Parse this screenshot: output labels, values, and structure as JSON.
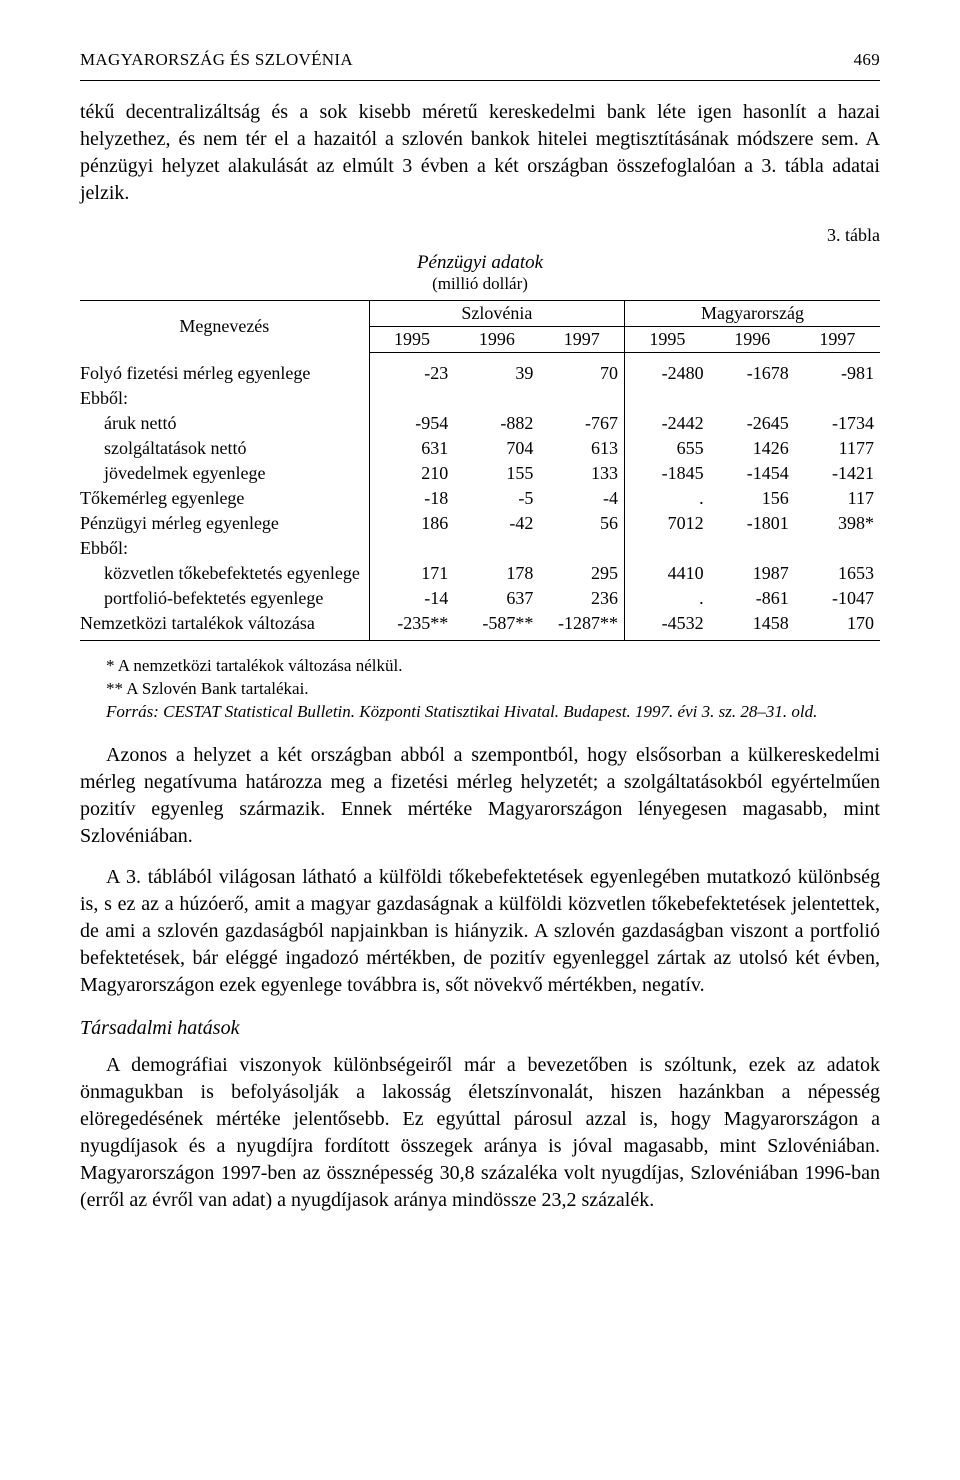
{
  "running_head": {
    "left": "MAGYARORSZÁG ÉS SZLOVÉNIA",
    "page_number": "469"
  },
  "para1": "tékű decentralizáltság és a sok kisebb méretű kereskedelmi bank léte igen hasonlít a hazai helyzethez, és nem tér el a hazaitól a szlovén bankok hitelei megtisztításának módszere sem. A pénzügyi helyzet alakulását az elmúlt 3 évben a két országban összefoglalóan a 3. tábla adatai jelzik.",
  "table": {
    "tag": "3. tábla",
    "title": "Pénzügyi adatok",
    "subtitle": "(millió dollár)",
    "col_label": "Megnevezés",
    "group1": "Szlovénia",
    "group2": "Magyarország",
    "years": [
      "1995",
      "1996",
      "1997",
      "1995",
      "1996",
      "1997"
    ],
    "rows": [
      {
        "label": "Folyó fizetési mérleg egyenlege",
        "indent": 0,
        "vals": [
          "-23",
          "39",
          "70",
          "-2480",
          "-1678",
          "-981"
        ]
      },
      {
        "label": "Ebből:",
        "indent": 0,
        "vals": [
          "",
          "",
          "",
          "",
          "",
          ""
        ]
      },
      {
        "label": "áruk nettó",
        "indent": 1,
        "vals": [
          "-954",
          "-882",
          "-767",
          "-2442",
          "-2645",
          "-1734"
        ]
      },
      {
        "label": "szolgáltatások nettó",
        "indent": 1,
        "vals": [
          "631",
          "704",
          "613",
          "655",
          "1426",
          "1177"
        ]
      },
      {
        "label": "jövedelmek egyenlege",
        "indent": 1,
        "vals": [
          "210",
          "155",
          "133",
          "-1845",
          "-1454",
          "-1421"
        ]
      },
      {
        "label": "Tőkemérleg egyenlege",
        "indent": 0,
        "vals": [
          "-18",
          "-5",
          "-4",
          ".",
          "156",
          "117"
        ]
      },
      {
        "label": "Pénzügyi mérleg egyenlege",
        "indent": 0,
        "vals": [
          "186",
          "-42",
          "56",
          "7012",
          "-1801",
          "398*"
        ]
      },
      {
        "label": "Ebből:",
        "indent": 0,
        "vals": [
          "",
          "",
          "",
          "",
          "",
          ""
        ]
      },
      {
        "label": "közvetlen tőkebefektetés egyenlege",
        "indent": 1,
        "vals": [
          "171",
          "178",
          "295",
          "4410",
          "1987",
          "1653"
        ]
      },
      {
        "label": "portfolió-befektetés egyenlege",
        "indent": 1,
        "vals": [
          "-14",
          "637",
          "236",
          ".",
          "-861",
          "-1047"
        ]
      },
      {
        "label": "Nemzetközi tartalékok változása",
        "indent": 0,
        "vals": [
          "-235**",
          "-587**",
          "-1287**",
          "-4532",
          "1458",
          "170"
        ]
      }
    ]
  },
  "footnotes": {
    "f1": "* A nemzetközi tartalékok változása nélkül.",
    "f2": "** A Szlovén Bank tartalékai.",
    "source": "Forrás: CESTAT Statistical Bulletin. Központi Statisztikai Hivatal. Budapest. 1997. évi 3. sz. 28–31. old."
  },
  "para2": "Azonos a helyzet a két országban abból a szempontból, hogy elsősorban a külkereskedelmi mérleg negatívuma határozza meg a fizetési mérleg helyzetét; a szolgáltatásokból egyértelműen pozitív egyenleg származik. Ennek mértéke Magyarországon lényegesen magasabb, mint Szlovéniában.",
  "para3": "A 3. táblából világosan látható a külföldi tőkebefektetések egyenlegében mutatkozó különbség is, s ez az a húzóerő, amit a magyar gazdaságnak a külföldi közvetlen tőkebefektetések jelentettek, de ami a szlovén gazdaságból napjainkban is hiányzik. A szlovén gazdaságban viszont a portfolió befektetések, bár eléggé ingadozó mértékben, de pozitív egyenleggel zártak az utolsó két évben, Magyarországon ezek egyenlege továbbra is, sőt növekvő mértékben, negatív.",
  "section_head": "Társadalmi hatások",
  "para4": "A demográfiai viszonyok különbségeiről már a bevezetőben is szóltunk, ezek az adatok önmagukban is befolyásolják a lakosság életszínvonalát, hiszen hazánkban a népesség elöregedésének mértéke jelentősebb. Ez egyúttal párosul azzal is, hogy Magyarországon a nyugdíjasok és a nyugdíjra fordított összegek aránya is jóval magasabb, mint Szlovéniában. Magyarországon 1997-ben az össznépesség 30,8 százaléka volt nyugdíjas, Szlovéniában 1996-ban (erről az évről van adat) a nyugdíjasok aránya mindössze 23,2 százalék."
}
